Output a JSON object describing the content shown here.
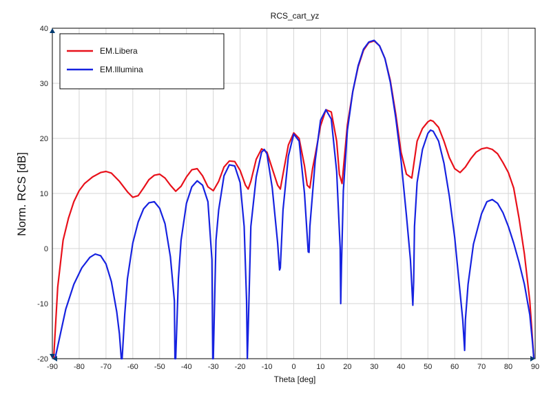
{
  "chart_data": {
    "type": "line",
    "title": "RCS_cart_yz",
    "xlabel": "Theta [deg]",
    "ylabel": "Norm. RCS [dB]",
    "xlim": [
      -90,
      90
    ],
    "ylim": [
      -20,
      40
    ],
    "xticks": [
      -90,
      -80,
      -70,
      -60,
      -50,
      -40,
      -30,
      -20,
      -10,
      0,
      10,
      20,
      30,
      40,
      50,
      60,
      70,
      80,
      90
    ],
    "yticks": [
      -20,
      -10,
      0,
      10,
      20,
      30,
      40
    ],
    "grid": true,
    "legend_position": "top-left",
    "series": [
      {
        "name": "EM.Libera",
        "color": "#e8101a",
        "x": [
          -89.5,
          -88,
          -86,
          -84,
          -82,
          -80,
          -78,
          -75,
          -72,
          -70,
          -68,
          -65,
          -62,
          -60,
          -58,
          -56,
          -54,
          -52,
          -50,
          -48,
          -46,
          -44,
          -42,
          -40,
          -38,
          -36,
          -34,
          -32,
          -30,
          -28,
          -26,
          -24,
          -22,
          -20,
          -18,
          -17,
          -16,
          -14,
          -12,
          -10,
          -8,
          -6,
          -5,
          -4,
          -2,
          0,
          2,
          4,
          5,
          6,
          7,
          8,
          10,
          12,
          14,
          16,
          17,
          18,
          20,
          22,
          24,
          26,
          28,
          30,
          32,
          34,
          36,
          38,
          40,
          42,
          44,
          46,
          48,
          50,
          51,
          52,
          54,
          56,
          58,
          60,
          62,
          64,
          66,
          68,
          70,
          72,
          74,
          76,
          78,
          80,
          82,
          84,
          86,
          88,
          89.5
        ],
        "y": [
          -20,
          -7,
          1.5,
          5.5,
          8.5,
          10.5,
          11.8,
          13,
          13.8,
          14,
          13.7,
          12.2,
          10.3,
          9.3,
          9.6,
          11,
          12.5,
          13.3,
          13.5,
          12.8,
          11.5,
          10.4,
          11.3,
          13,
          14.3,
          14.5,
          13.2,
          11.2,
          10.5,
          12.2,
          14.8,
          15.9,
          15.8,
          14.2,
          11.5,
          10.8,
          12.2,
          16.2,
          18.1,
          17.5,
          14.5,
          11.5,
          10.8,
          13.5,
          18.8,
          21,
          20,
          15,
          11.5,
          11,
          14.5,
          17,
          22.3,
          25.2,
          24.8,
          19.5,
          13.5,
          11.8,
          22.5,
          28.5,
          33,
          36,
          37.4,
          37.7,
          36.8,
          34.5,
          30.5,
          24.5,
          17.5,
          13.5,
          12.8,
          19.5,
          21.8,
          23,
          23.3,
          23.1,
          22,
          19.5,
          16.5,
          14.5,
          13.8,
          14.8,
          16.3,
          17.5,
          18.1,
          18.3,
          18,
          17.2,
          15.6,
          13.8,
          11,
          5.5,
          -1,
          -9.5,
          -20
        ]
      },
      {
        "name": "EM.Illumina",
        "color": "#1622e0",
        "x": [
          -89.5,
          -89,
          -87,
          -85,
          -82,
          -79,
          -76,
          -74,
          -72,
          -70,
          -68,
          -66,
          -65,
          -64.3,
          -64,
          -63,
          -62,
          -60,
          -58,
          -56,
          -54,
          -52,
          -50,
          -48,
          -46,
          -44.5,
          -44.3,
          -44,
          -43,
          -42,
          -40,
          -38,
          -36,
          -34,
          -32,
          -30.5,
          -30.2,
          -30,
          -29,
          -28,
          -26,
          -24,
          -22,
          -20,
          -18.5,
          -17.6,
          -17.3,
          -17,
          -16,
          -14,
          -12,
          -11,
          -10,
          -8,
          -6,
          -5.3,
          -5,
          -4,
          -2,
          0,
          2,
          4,
          5.4,
          5.7,
          6,
          8,
          10,
          12,
          14,
          16,
          17.3,
          17.5,
          17.8,
          18.5,
          20,
          22,
          24,
          26,
          28,
          30,
          32,
          34,
          36,
          38,
          40,
          42,
          43.5,
          44.4,
          44.7,
          45,
          46,
          48,
          50,
          51,
          52,
          54,
          56,
          58,
          60,
          62,
          63,
          63.7,
          64,
          65,
          67,
          70,
          72,
          74,
          76,
          78,
          80,
          82,
          84,
          86,
          88,
          89,
          89.5
        ],
        "y": [
          -20,
          -20,
          -15.5,
          -11,
          -6.5,
          -3.5,
          -1.6,
          -1,
          -1.3,
          -2.8,
          -6,
          -11.5,
          -15.5,
          -20,
          -20,
          -12,
          -5.5,
          1,
          4.8,
          7.2,
          8.3,
          8.5,
          7.3,
          4.5,
          -1.5,
          -9.5,
          -20,
          -20,
          -5.5,
          1.5,
          8.2,
          11.2,
          12.3,
          11.5,
          8.5,
          -2,
          -20,
          -20,
          1.5,
          7,
          13.2,
          15.2,
          15,
          12,
          4,
          -9.5,
          -20,
          -15,
          4,
          13,
          17.5,
          18,
          17.2,
          11,
          1,
          -3.9,
          -3.5,
          7,
          16.8,
          20.8,
          19.5,
          10,
          -0.6,
          -0.7,
          4,
          16,
          23.3,
          25.2,
          23.5,
          14,
          0,
          -10,
          -3,
          10.5,
          21.5,
          28.5,
          33.2,
          36.2,
          37.5,
          37.8,
          36.8,
          34.5,
          30.2,
          23.8,
          16,
          6,
          -2,
          -10.3,
          -6,
          4,
          12,
          18,
          20.9,
          21.5,
          21.3,
          19.5,
          15.5,
          9.5,
          2,
          -8,
          -13,
          -18.5,
          -13,
          -6.5,
          0.8,
          6.3,
          8.5,
          8.9,
          8.2,
          6.5,
          4,
          1,
          -2.5,
          -6.5,
          -12,
          -17,
          -20
        ]
      }
    ]
  }
}
